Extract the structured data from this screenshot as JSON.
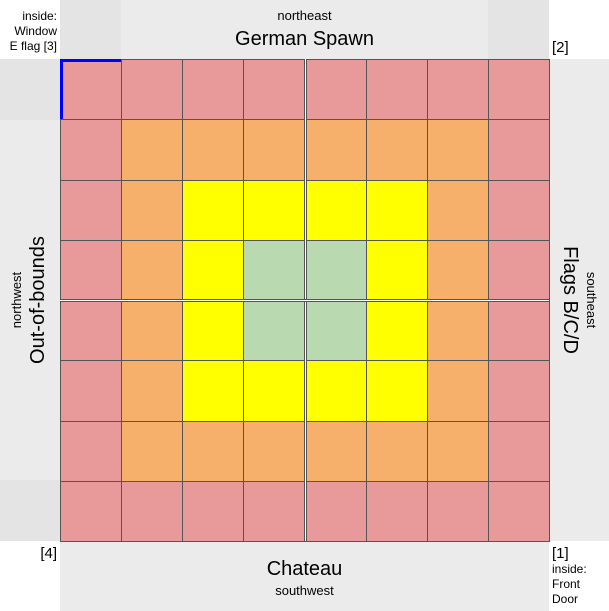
{
  "labels": {
    "top_direction": "northeast",
    "top_title": "German Spawn",
    "bottom_title": "Chateau",
    "bottom_direction": "southwest",
    "left_title": "Out-of-bounds",
    "left_direction": "northwest",
    "right_title": "Flags B/C/D",
    "right_direction": "southeast"
  },
  "corners": {
    "top_left": [
      "inside:",
      "Window",
      "E flag [3]"
    ],
    "top_right": "[2]",
    "bottom_left": "[4]",
    "bottom_right": [
      "[1]",
      "inside:",
      "Front",
      "Door"
    ]
  },
  "grid": {
    "rows": 8,
    "cols": 8,
    "zones": [
      [
        1,
        1,
        1,
        1,
        1,
        1,
        1,
        1
      ],
      [
        1,
        2,
        2,
        2,
        2,
        2,
        2,
        1
      ],
      [
        1,
        2,
        3,
        3,
        3,
        3,
        2,
        1
      ],
      [
        1,
        2,
        3,
        4,
        4,
        3,
        2,
        1
      ],
      [
        1,
        2,
        3,
        4,
        4,
        3,
        2,
        1
      ],
      [
        1,
        2,
        3,
        3,
        3,
        3,
        2,
        1
      ],
      [
        1,
        2,
        2,
        2,
        2,
        2,
        2,
        1
      ],
      [
        1,
        1,
        1,
        1,
        1,
        1,
        1,
        1
      ]
    ],
    "zone_colors": {
      "1": "#e89a9a",
      "2": "#f6b06c",
      "3": "#ffff00",
      "4": "#b9d9b0"
    },
    "highlight_cell": {
      "row": 0,
      "col": 0,
      "color": "#0000ff"
    }
  }
}
